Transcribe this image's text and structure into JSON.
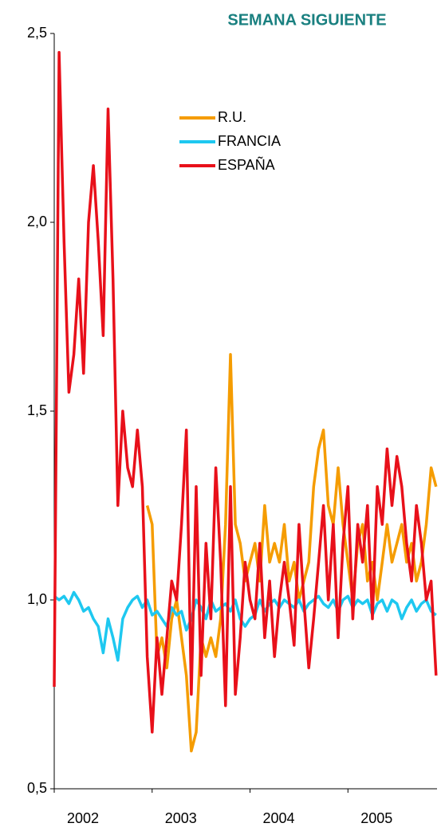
{
  "chart_data": {
    "type": "line",
    "title": "SEMANA SIGUIENTE",
    "x": [
      2002,
      2002.05,
      2002.1,
      2002.15,
      2002.2,
      2002.25,
      2002.3,
      2002.35,
      2002.4,
      2002.45,
      2002.5,
      2002.55,
      2002.6,
      2002.65,
      2002.7,
      2002.75,
      2002.8,
      2002.85,
      2002.9,
      2002.95,
      2003,
      2003.05,
      2003.1,
      2003.15,
      2003.2,
      2003.25,
      2003.3,
      2003.35,
      2003.4,
      2003.45,
      2003.5,
      2003.55,
      2003.6,
      2003.65,
      2003.7,
      2003.75,
      2003.8,
      2003.85,
      2003.9,
      2003.95,
      2004,
      2004.05,
      2004.1,
      2004.15,
      2004.2,
      2004.25,
      2004.3,
      2004.35,
      2004.4,
      2004.45,
      2004.5,
      2004.55,
      2004.6,
      2004.65,
      2004.7,
      2004.75,
      2004.8,
      2004.85,
      2004.9,
      2004.95,
      2005,
      2005.05,
      2005.1,
      2005.15,
      2005.2,
      2005.25,
      2005.3,
      2005.35,
      2005.4,
      2005.45,
      2005.5,
      2005.55,
      2005.6,
      2005.65,
      2005.7,
      2005.75,
      2005.8,
      2005.85,
      2005.9
    ],
    "series": [
      {
        "name": "R.U.",
        "color": "#f59c00",
        "values": [
          null,
          null,
          null,
          null,
          null,
          null,
          null,
          null,
          null,
          null,
          null,
          null,
          null,
          null,
          null,
          null,
          null,
          null,
          null,
          1.25,
          1.2,
          0.85,
          0.9,
          0.82,
          0.95,
          1.0,
          0.9,
          0.8,
          0.6,
          0.65,
          0.9,
          0.85,
          0.9,
          0.85,
          0.95,
          1.2,
          1.65,
          1.2,
          1.15,
          1.05,
          1.1,
          1.15,
          1.05,
          1.25,
          1.1,
          1.15,
          1.1,
          1.2,
          1.05,
          1.1,
          1.0,
          1.05,
          1.1,
          1.3,
          1.4,
          1.45,
          1.25,
          1.2,
          1.35,
          1.2,
          1.1,
          1.0,
          1.15,
          1.2,
          1.05,
          1.1,
          1.0,
          1.1,
          1.2,
          1.1,
          1.15,
          1.2,
          1.1,
          1.15,
          1.05,
          1.1,
          1.2,
          1.35,
          1.3
        ]
      },
      {
        "name": "FRANCIA",
        "color": "#1ec8f0",
        "values": [
          1.01,
          1.0,
          1.01,
          0.99,
          1.02,
          1.0,
          0.97,
          0.98,
          0.95,
          0.93,
          0.86,
          0.95,
          0.9,
          0.84,
          0.95,
          0.98,
          1.0,
          1.01,
          0.98,
          1.0,
          0.96,
          0.97,
          0.95,
          0.93,
          0.98,
          0.96,
          0.97,
          0.92,
          0.95,
          1.0,
          0.98,
          0.95,
          1.0,
          0.97,
          0.98,
          0.99,
          0.97,
          1.0,
          0.95,
          0.93,
          0.95,
          0.96,
          1.0,
          0.97,
          0.99,
          1.0,
          0.98,
          1.0,
          0.99,
          0.98,
          1.0,
          0.97,
          0.99,
          1.0,
          1.01,
          0.99,
          0.98,
          1.0,
          0.97,
          1.0,
          1.01,
          0.98,
          1.0,
          0.99,
          1.0,
          0.96,
          0.99,
          1.0,
          0.97,
          1.0,
          0.99,
          0.95,
          0.98,
          1.0,
          0.97,
          0.99,
          1.0,
          0.97,
          0.96
        ]
      },
      {
        "name": "ESPAÑA",
        "color": "#e8101a",
        "values": [
          0.77,
          2.45,
          1.95,
          1.55,
          1.65,
          1.85,
          1.6,
          2.0,
          2.15,
          1.95,
          1.7,
          2.3,
          1.85,
          1.25,
          1.5,
          1.35,
          1.3,
          1.45,
          1.3,
          0.85,
          0.65,
          0.9,
          0.75,
          0.9,
          1.05,
          1.0,
          1.2,
          1.45,
          0.75,
          1.3,
          0.8,
          1.15,
          0.95,
          1.35,
          1.1,
          0.72,
          1.3,
          0.75,
          0.9,
          1.1,
          1.0,
          0.95,
          1.15,
          0.9,
          1.05,
          0.85,
          1.0,
          1.1,
          1.0,
          0.88,
          1.2,
          1.0,
          0.82,
          0.95,
          1.1,
          1.25,
          1.0,
          1.2,
          0.9,
          1.15,
          1.3,
          0.95,
          1.2,
          1.1,
          1.25,
          0.95,
          1.3,
          1.2,
          1.4,
          1.25,
          1.38,
          1.3,
          1.15,
          1.05,
          1.25,
          1.15,
          1.0,
          1.05,
          0.8
        ]
      }
    ],
    "xlim": [
      2002,
      2005.91
    ],
    "xticks": [
      2002,
      2003,
      2004,
      2005
    ],
    "ylim": [
      0.5,
      2.5
    ],
    "yticks": [
      {
        "value": 0.5,
        "label": "0,5"
      },
      {
        "value": 1.0,
        "label": "1,0"
      },
      {
        "value": 1.5,
        "label": "1,5"
      },
      {
        "value": 2.0,
        "label": "2,0"
      },
      {
        "value": 2.5,
        "label": "2,5"
      }
    ],
    "grid": false
  }
}
